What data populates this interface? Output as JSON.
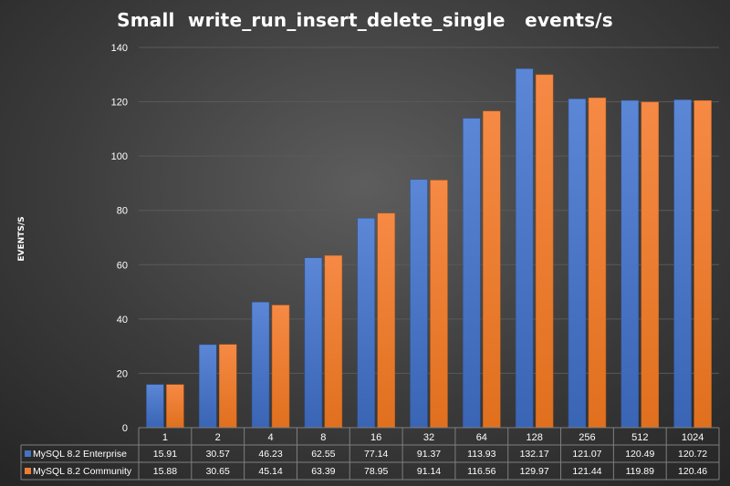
{
  "chart_data": {
    "type": "bar",
    "title": "Small  write_run_insert_delete_single   events/s",
    "ylabel": "EVENTS/S",
    "xlabel": "",
    "ylim": [
      0,
      140
    ],
    "yticks": [
      0,
      20,
      40,
      60,
      80,
      100,
      120,
      140
    ],
    "grid": true,
    "legend": "data-table",
    "categories": [
      "1",
      "2",
      "4",
      "8",
      "16",
      "32",
      "64",
      "128",
      "256",
      "512",
      "1024"
    ],
    "series": [
      {
        "name": "MySQL 8.2 Enterprise",
        "color": "#4472c4",
        "values": [
          15.91,
          30.57,
          46.23,
          62.55,
          77.14,
          91.37,
          113.93,
          132.17,
          121.07,
          120.49,
          120.72
        ],
        "labels": [
          "15.91",
          "30.57",
          "46.23",
          "62.55",
          "77.14",
          "91.37",
          "113.93",
          "132.17",
          "121.07",
          "120.49",
          "120.72"
        ]
      },
      {
        "name": "MySQL 8.2 Community",
        "color": "#ed7d31",
        "values": [
          15.88,
          30.65,
          45.14,
          63.39,
          78.95,
          91.14,
          116.56,
          129.97,
          121.44,
          119.89,
          120.46
        ],
        "labels": [
          "15.88",
          "30.65",
          "45.14",
          "63.39",
          "78.95",
          "91.14",
          "116.56",
          "129.97",
          "121.44",
          "119.89",
          "120.46"
        ]
      }
    ]
  }
}
